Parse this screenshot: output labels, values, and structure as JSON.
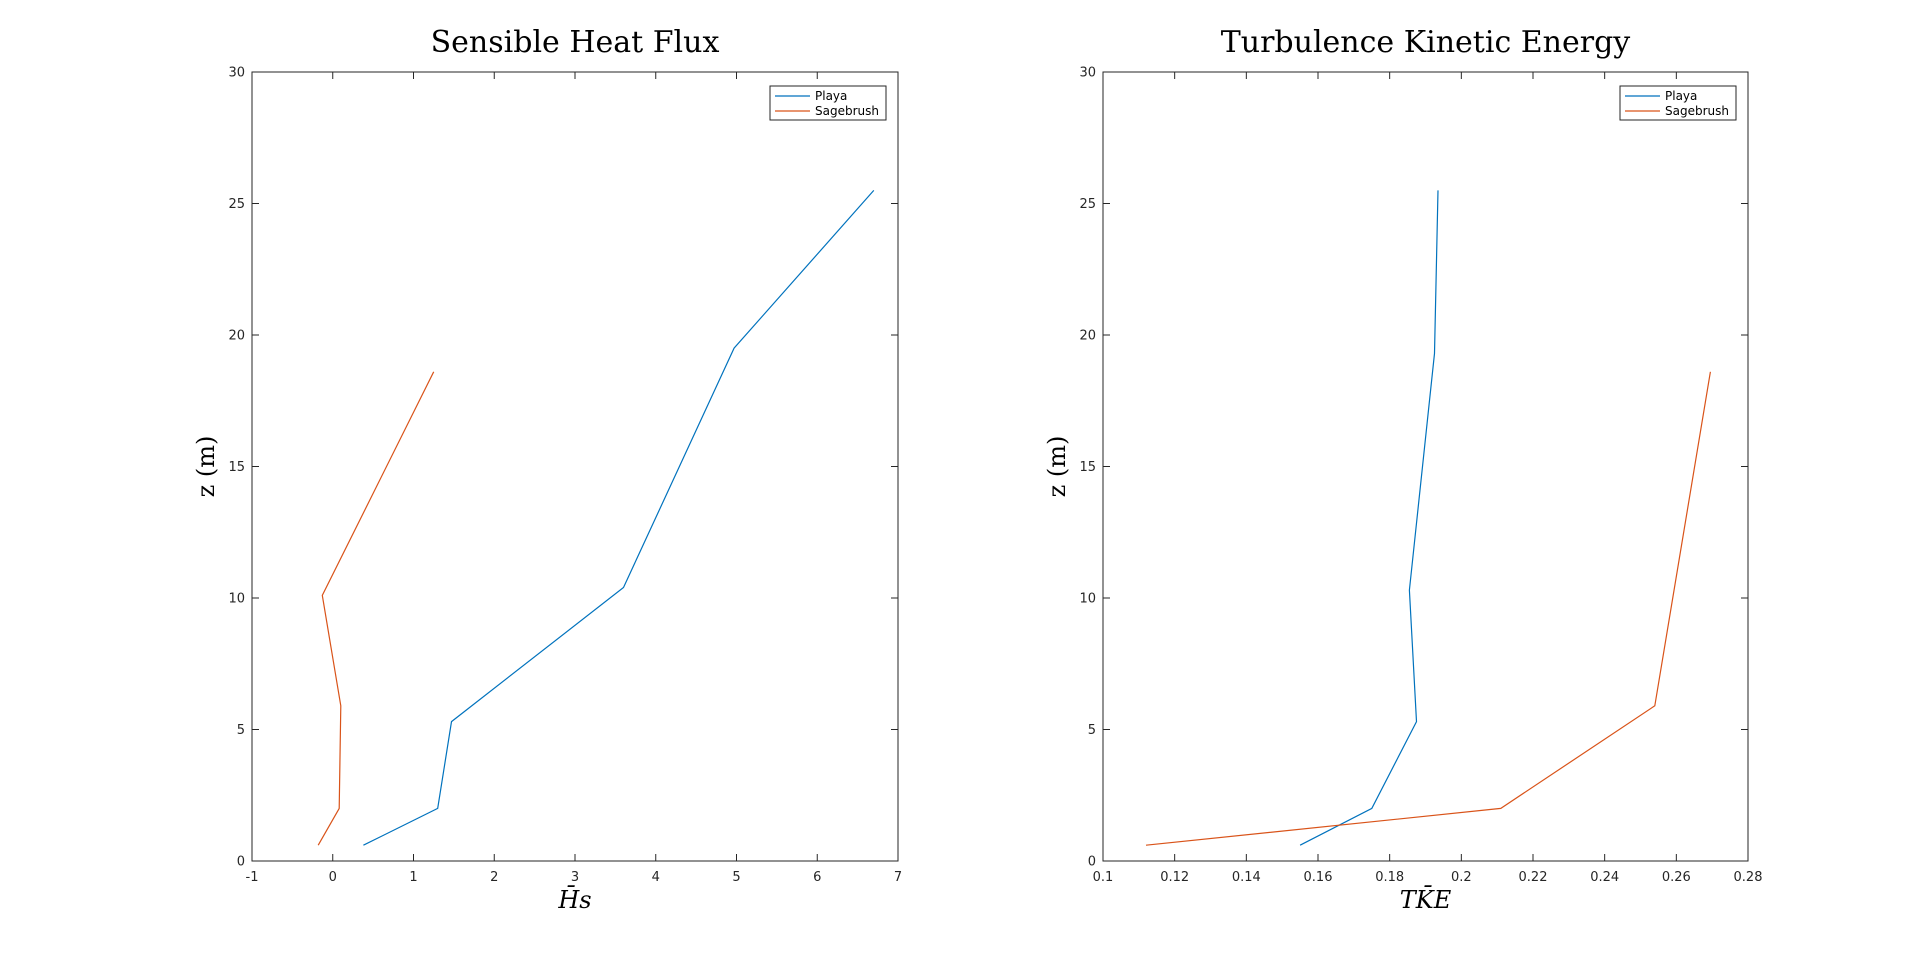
{
  "chart_data": [
    {
      "type": "line",
      "title": "Sensible Heat Flux",
      "xlabel": "H̄s",
      "ylabel": "z (m)",
      "xlim": [
        -1,
        7
      ],
      "ylim": [
        0,
        30
      ],
      "xticks": [
        "-1",
        "0",
        "1",
        "2",
        "3",
        "4",
        "5",
        "6",
        "7"
      ],
      "yticks": [
        "0",
        "5",
        "10",
        "15",
        "20",
        "25",
        "30"
      ],
      "legend_position": "top-right",
      "grid": false,
      "series": [
        {
          "name": "Playa",
          "color": "#0072BD",
          "points": [
            [
              0.38,
              0.6
            ],
            [
              1.3,
              2.0
            ],
            [
              1.47,
              5.3
            ],
            [
              3.6,
              10.4
            ],
            [
              4.97,
              19.5
            ],
            [
              6.7,
              25.5
            ]
          ]
        },
        {
          "name": "Sagebrush",
          "color": "#D95319",
          "points": [
            [
              -0.18,
              0.6
            ],
            [
              0.08,
              2.0
            ],
            [
              0.1,
              5.9
            ],
            [
              -0.13,
              10.1
            ],
            [
              1.25,
              18.6
            ]
          ]
        }
      ]
    },
    {
      "type": "line",
      "title": "Turbulence Kinetic Energy",
      "xlabel": "TK̄E",
      "ylabel": "z (m)",
      "xlim": [
        0.1,
        0.28
      ],
      "ylim": [
        0,
        30
      ],
      "xticks": [
        "0.1",
        "0.12",
        "0.14",
        "0.16",
        "0.18",
        "0.2",
        "0.22",
        "0.24",
        "0.26",
        "0.28"
      ],
      "yticks": [
        "0",
        "5",
        "10",
        "15",
        "20",
        "25",
        "30"
      ],
      "legend_position": "top-right",
      "grid": false,
      "series": [
        {
          "name": "Playa",
          "color": "#0072BD",
          "points": [
            [
              0.155,
              0.6
            ],
            [
              0.175,
              2.0
            ],
            [
              0.1875,
              5.3
            ],
            [
              0.1855,
              10.3
            ],
            [
              0.1925,
              19.3
            ],
            [
              0.1935,
              25.5
            ]
          ]
        },
        {
          "name": "Sagebrush",
          "color": "#D95319",
          "points": [
            [
              0.112,
              0.6
            ],
            [
              0.211,
              2.0
            ],
            [
              0.254,
              5.9
            ],
            [
              0.2695,
              18.6
            ]
          ]
        }
      ]
    }
  ]
}
